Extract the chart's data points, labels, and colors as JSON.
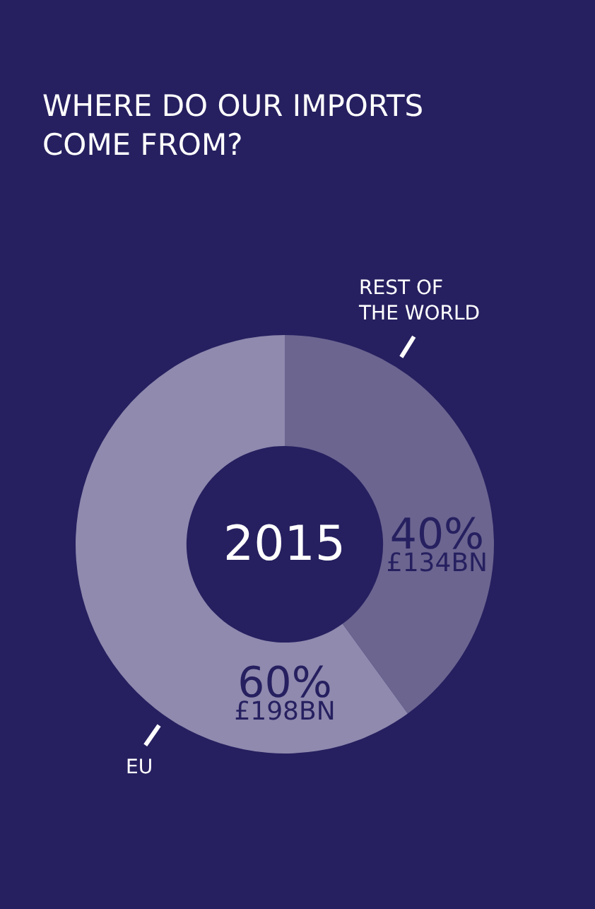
{
  "chart_data": {
    "type": "donut",
    "title": "WHERE DO OUR IMPORTS COME FROM?",
    "categories": [
      "REST OF THE WORLD",
      "EU"
    ],
    "values": [
      40,
      60
    ],
    "colors": [
      "#6b6590",
      "#8f8aae"
    ],
    "value_labels": [
      "40% £134BN",
      "60% £198BN"
    ],
    "annotations": [
      "2015"
    ],
    "legend": false
  }
}
